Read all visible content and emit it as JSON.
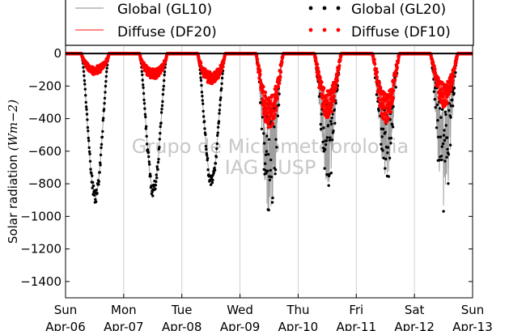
{
  "chart_data": {
    "type": "line",
    "ylabel": "Solar radiation ($Wm-2$)",
    "ylabel_parts": {
      "main": "Solar radiation ",
      "unit": "(Wm−2)"
    },
    "ylim": [
      -1500,
      50
    ],
    "yticks": [
      0,
      -200,
      -400,
      -600,
      -800,
      -1000,
      -1200,
      -1400
    ],
    "ytick_labels": [
      "0",
      "−200",
      "−400",
      "−600",
      "−800",
      "−1000",
      "−1200",
      "−1400"
    ],
    "xlim_days": [
      0,
      7
    ],
    "x_ticks": [
      {
        "day": 0,
        "weekday": "Sun",
        "date": "Apr-06"
      },
      {
        "day": 1,
        "weekday": "Mon",
        "date": "Apr-07"
      },
      {
        "day": 2,
        "weekday": "Tue",
        "date": "Apr-08"
      },
      {
        "day": 3,
        "weekday": "Wed",
        "date": "Apr-09"
      },
      {
        "day": 4,
        "weekday": "Thu",
        "date": "Apr-10"
      },
      {
        "day": 5,
        "weekday": "Fri",
        "date": "Apr-11"
      },
      {
        "day": 6,
        "weekday": "Sat",
        "date": "Apr-12"
      },
      {
        "day": 7,
        "weekday": "Sun",
        "date": "Apr-13"
      }
    ],
    "grid": "vertical",
    "legend_position": "top",
    "watermark": [
      "Grupo de Micrometeorologia",
      "IAG - USP"
    ],
    "series": [
      {
        "name": "Global (GL10)",
        "style": "line",
        "color": "#a0a0a0"
      },
      {
        "name": "Diffuse (DF20)",
        "style": "line",
        "color": "#ff4040"
      },
      {
        "name": "Global (GL20)",
        "style": "dots",
        "color": "#000000"
      },
      {
        "name": "Diffuse (DF10)",
        "style": "dots",
        "color": "#ff0000"
      }
    ],
    "daily_peaks": [
      {
        "day": 0,
        "global_min": -890,
        "diffuse_min": -130,
        "sunrise": 0.27,
        "sunset": 0.75,
        "noon": 0.5,
        "cloudy": false
      },
      {
        "day": 1,
        "global_min": -850,
        "diffuse_min": -160,
        "sunrise": 0.27,
        "sunset": 0.75,
        "noon": 0.5,
        "cloudy": false
      },
      {
        "day": 2,
        "global_min": -790,
        "diffuse_min": -190,
        "sunrise": 0.27,
        "sunset": 0.75,
        "noon": 0.5,
        "cloudy": false
      },
      {
        "day": 3,
        "global_min": -1030,
        "diffuse_min": -480,
        "sunrise": 0.27,
        "sunset": 0.75,
        "noon": 0.5,
        "cloudy": true
      },
      {
        "day": 4,
        "global_min": -820,
        "diffuse_min": -410,
        "sunrise": 0.27,
        "sunset": 0.75,
        "noon": 0.5,
        "cloudy": true
      },
      {
        "day": 5,
        "global_min": -800,
        "diffuse_min": -440,
        "sunrise": 0.27,
        "sunset": 0.75,
        "noon": 0.5,
        "cloudy": true
      },
      {
        "day": 6,
        "global_min": -950,
        "diffuse_min": -330,
        "sunrise": 0.27,
        "sunset": 0.75,
        "noon": 0.5,
        "cloudy": true
      }
    ]
  }
}
